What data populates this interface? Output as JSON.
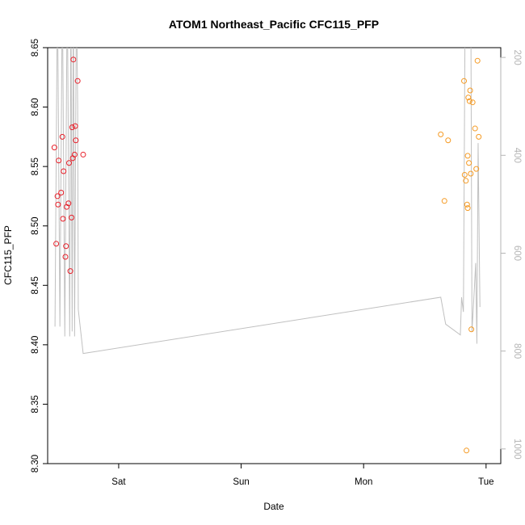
{
  "chart_data": {
    "type": "scatter",
    "title": "ATOM1 Northeast_Pacific CFC115_PFP",
    "xlabel": "Date",
    "ylabel": "CFC115_PFP",
    "x_ticks": [
      "Sat",
      "Sun",
      "Mon",
      "Tue"
    ],
    "x_tick_days": [
      1,
      2,
      3,
      4
    ],
    "xlim_days": [
      0.42,
      4.12
    ],
    "ylim": [
      8.3,
      8.65
    ],
    "y_ticks": [
      8.3,
      8.35,
      8.4,
      8.45,
      8.5,
      8.55,
      8.6,
      8.65
    ],
    "y_tick_labels": [
      "8.30",
      "8.35",
      "8.40",
      "8.45",
      "8.50",
      "8.55",
      "8.60",
      "8.65"
    ],
    "y2_label": "",
    "y2_ticks": [
      200,
      400,
      600,
      800,
      1000
    ],
    "y2_tick_labels": [
      "200",
      "400",
      "600",
      "800",
      "1000"
    ],
    "y2lim": [
      1030,
      180
    ],
    "grid": false,
    "legend": "none",
    "colors": {
      "series1": "#e8202a",
      "series2": "#f59a23",
      "line": "#c0c0c0",
      "right_axis": "#b5b5b5",
      "axis": "#000000"
    },
    "series": [
      {
        "values": [
          {
            "x": 0.475,
            "y": 8.566
          },
          {
            "x": 0.49,
            "y": 8.485
          },
          {
            "x": 0.5,
            "y": 8.525
          },
          {
            "x": 0.505,
            "y": 8.518
          },
          {
            "x": 0.51,
            "y": 8.555
          },
          {
            "x": 0.53,
            "y": 8.528
          },
          {
            "x": 0.54,
            "y": 8.575
          },
          {
            "x": 0.545,
            "y": 8.506
          },
          {
            "x": 0.55,
            "y": 8.546
          },
          {
            "x": 0.565,
            "y": 8.474
          },
          {
            "x": 0.57,
            "y": 8.483
          },
          {
            "x": 0.575,
            "y": 8.516
          },
          {
            "x": 0.59,
            "y": 8.519
          },
          {
            "x": 0.595,
            "y": 8.553
          },
          {
            "x": 0.605,
            "y": 8.462
          },
          {
            "x": 0.615,
            "y": 8.507
          },
          {
            "x": 0.62,
            "y": 8.583
          },
          {
            "x": 0.625,
            "y": 8.557
          },
          {
            "x": 0.63,
            "y": 8.64
          },
          {
            "x": 0.64,
            "y": 8.56
          },
          {
            "x": 0.645,
            "y": 8.584
          },
          {
            "x": 0.65,
            "y": 8.572
          },
          {
            "x": 0.665,
            "y": 8.622
          },
          {
            "x": 0.71,
            "y": 8.56
          }
        ]
      },
      {
        "values": [
          {
            "x": 3.63,
            "y": 8.577
          },
          {
            "x": 3.66,
            "y": 8.521
          },
          {
            "x": 3.69,
            "y": 8.572
          },
          {
            "x": 3.82,
            "y": 8.622
          },
          {
            "x": 3.825,
            "y": 8.543
          },
          {
            "x": 3.835,
            "y": 8.538
          },
          {
            "x": 3.84,
            "y": 8.311
          },
          {
            "x": 3.845,
            "y": 8.518
          },
          {
            "x": 3.85,
            "y": 8.515
          },
          {
            "x": 3.85,
            "y": 8.559
          },
          {
            "x": 3.855,
            "y": 8.608
          },
          {
            "x": 3.86,
            "y": 8.553
          },
          {
            "x": 3.865,
            "y": 8.605
          },
          {
            "x": 3.87,
            "y": 8.614
          },
          {
            "x": 3.875,
            "y": 8.544
          },
          {
            "x": 3.88,
            "y": 8.413
          },
          {
            "x": 3.89,
            "y": 8.604
          },
          {
            "x": 3.91,
            "y": 8.582
          },
          {
            "x": 3.92,
            "y": 8.548
          },
          {
            "x": 3.93,
            "y": 8.639
          },
          {
            "x": 3.94,
            "y": 8.575
          }
        ]
      }
    ],
    "line_series": {
      "axis": "right",
      "values": [
        {
          "x": 0.48,
          "y": 750
        },
        {
          "x": 0.5,
          "y": 50
        },
        {
          "x": 0.52,
          "y": 750
        },
        {
          "x": 0.54,
          "y": 50
        },
        {
          "x": 0.56,
          "y": 770
        },
        {
          "x": 0.58,
          "y": 50
        },
        {
          "x": 0.6,
          "y": 770
        },
        {
          "x": 0.61,
          "y": 50
        },
        {
          "x": 0.62,
          "y": 760
        },
        {
          "x": 0.63,
          "y": 50
        },
        {
          "x": 0.64,
          "y": 770
        },
        {
          "x": 0.655,
          "y": 50
        },
        {
          "x": 0.665,
          "y": 300
        },
        {
          "x": 0.67,
          "y": 715
        },
        {
          "x": 0.71,
          "y": 805
        },
        {
          "x": 3.63,
          "y": 690
        },
        {
          "x": 3.67,
          "y": 745
        },
        {
          "x": 3.79,
          "y": 767
        },
        {
          "x": 3.8,
          "y": 690
        },
        {
          "x": 3.815,
          "y": 720
        },
        {
          "x": 3.83,
          "y": 50
        },
        {
          "x": 3.845,
          "y": 50
        },
        {
          "x": 3.86,
          "y": 50
        },
        {
          "x": 3.875,
          "y": 50
        },
        {
          "x": 3.885,
          "y": 760
        },
        {
          "x": 3.905,
          "y": 670
        },
        {
          "x": 3.915,
          "y": 620
        },
        {
          "x": 3.925,
          "y": 785
        },
        {
          "x": 3.935,
          "y": 375
        },
        {
          "x": 3.95,
          "y": 710
        }
      ]
    }
  }
}
